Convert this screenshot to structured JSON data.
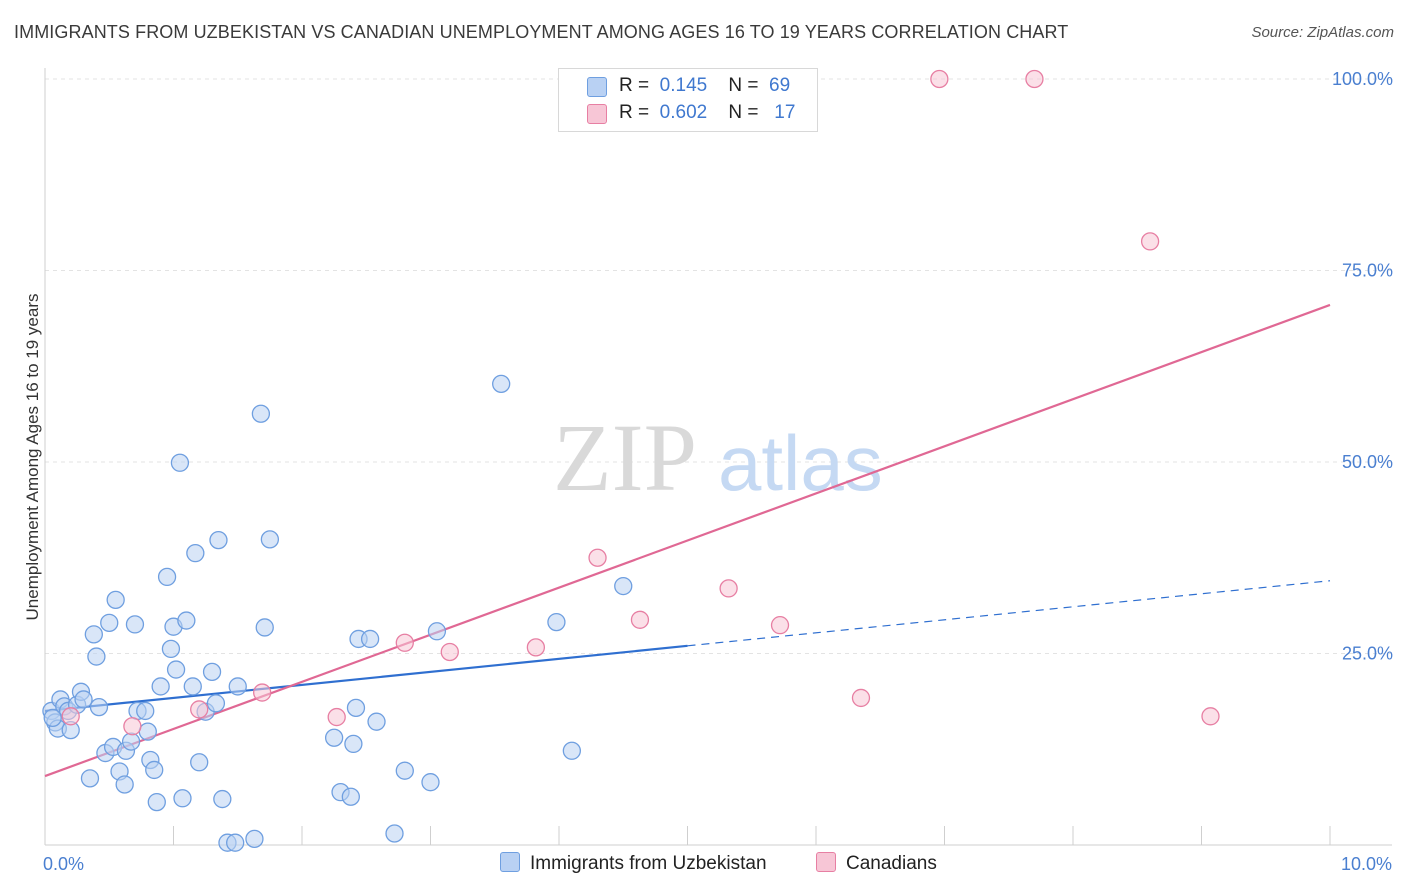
{
  "title": "IMMIGRANTS FROM UZBEKISTAN VS CANADIAN UNEMPLOYMENT AMONG AGES 16 TO 19 YEARS CORRELATION CHART",
  "source": "Source: ZipAtlas.com",
  "watermark": {
    "zip": "ZIP",
    "atlas": "atlas"
  },
  "colors": {
    "blue": "#6f9fe0",
    "blue_fill": "#b9d1f3",
    "blue_line": "#2f6fd0",
    "pink": "#e77fa3",
    "pink_fill": "#f7c6d6",
    "pink_line": "#e06894",
    "tick": "#4a7fd0"
  },
  "legend": {
    "rows": [
      {
        "r_label": "R =",
        "r_value": "0.145",
        "n_label": "N =",
        "n_value": "69"
      },
      {
        "r_label": "R =",
        "r_value": "0.602",
        "n_label": "N =",
        "n_value": "17"
      }
    ]
  },
  "bottom_legend": [
    "Immigrants from Uzbekistan",
    "Canadians"
  ],
  "chart_data": {
    "type": "scatter",
    "ylabel": "Unemployment Among Ages 16 to 19 years",
    "xlim": [
      0,
      10
    ],
    "ylim": [
      0,
      100
    ],
    "x_ticks": [
      {
        "value": 0,
        "label": "0.0%"
      },
      {
        "value": 10,
        "label": "10.0%"
      }
    ],
    "y_ticks": [
      {
        "value": 25,
        "label": "25.0%"
      },
      {
        "value": 50,
        "label": "50.0%"
      },
      {
        "value": 75,
        "label": "75.0%"
      },
      {
        "value": 100,
        "label": "100.0%"
      }
    ],
    "grid": true,
    "legend_position": "top-center",
    "series": [
      {
        "name": "Immigrants from Uzbekistan",
        "color": "#6f9fe0",
        "points": [
          [
            0.05,
            17.5
          ],
          [
            0.08,
            16
          ],
          [
            0.1,
            15.2
          ],
          [
            0.12,
            19
          ],
          [
            0.15,
            18.1
          ],
          [
            0.18,
            17.5
          ],
          [
            0.2,
            15
          ],
          [
            0.25,
            18.3
          ],
          [
            0.28,
            20
          ],
          [
            0.3,
            19
          ],
          [
            0.35,
            8.7
          ],
          [
            0.38,
            27.5
          ],
          [
            0.4,
            24.6
          ],
          [
            0.42,
            18
          ],
          [
            0.47,
            12
          ],
          [
            0.5,
            29
          ],
          [
            0.53,
            12.8
          ],
          [
            0.55,
            32
          ],
          [
            0.58,
            9.6
          ],
          [
            0.62,
            7.9
          ],
          [
            0.63,
            12.3
          ],
          [
            0.67,
            13.5
          ],
          [
            0.7,
            28.8
          ],
          [
            0.72,
            17.5
          ],
          [
            0.78,
            17.5
          ],
          [
            0.8,
            14.8
          ],
          [
            0.82,
            11.1
          ],
          [
            0.85,
            9.8
          ],
          [
            0.87,
            5.6
          ],
          [
            0.9,
            20.7
          ],
          [
            0.95,
            35
          ],
          [
            0.98,
            25.6
          ],
          [
            1.0,
            28.5
          ],
          [
            1.02,
            22.9
          ],
          [
            1.05,
            49.9
          ],
          [
            1.07,
            6.1
          ],
          [
            1.1,
            29.3
          ],
          [
            1.15,
            20.7
          ],
          [
            1.17,
            38.1
          ],
          [
            1.2,
            10.8
          ],
          [
            1.25,
            17.4
          ],
          [
            1.3,
            22.6
          ],
          [
            1.33,
            18.5
          ],
          [
            1.35,
            39.8
          ],
          [
            1.38,
            6.0
          ],
          [
            1.42,
            0.3
          ],
          [
            1.48,
            0.3
          ],
          [
            1.5,
            20.7
          ],
          [
            1.63,
            0.8
          ],
          [
            1.68,
            56.3
          ],
          [
            1.71,
            28.4
          ],
          [
            1.75,
            39.9
          ],
          [
            2.25,
            14
          ],
          [
            2.3,
            6.9
          ],
          [
            2.38,
            6.3
          ],
          [
            2.4,
            13.2
          ],
          [
            2.42,
            17.9
          ],
          [
            2.44,
            26.9
          ],
          [
            2.53,
            26.9
          ],
          [
            2.58,
            16.1
          ],
          [
            2.72,
            1.5
          ],
          [
            2.8,
            9.7
          ],
          [
            3.0,
            8.2
          ],
          [
            3.05,
            27.9
          ],
          [
            3.55,
            60.2
          ],
          [
            3.98,
            29.1
          ],
          [
            4.1,
            12.3
          ],
          [
            4.5,
            33.8
          ],
          [
            0.06,
            16.6
          ]
        ],
        "trend": {
          "solid": [
            [
              0,
              17.5
            ],
            [
              5.0,
              26
            ]
          ],
          "dashed": [
            [
              5.0,
              26
            ],
            [
              10,
              34.5
            ]
          ]
        }
      },
      {
        "name": "Canadians",
        "color": "#e77fa3",
        "points": [
          [
            0.2,
            16.8
          ],
          [
            0.68,
            15.5
          ],
          [
            1.2,
            17.7
          ],
          [
            1.69,
            19.9
          ],
          [
            2.27,
            16.7
          ],
          [
            2.8,
            26.4
          ],
          [
            3.15,
            25.2
          ],
          [
            3.82,
            25.8
          ],
          [
            4.3,
            37.5
          ],
          [
            4.63,
            29.4
          ],
          [
            5.32,
            33.5
          ],
          [
            5.72,
            28.7
          ],
          [
            6.35,
            19.2
          ],
          [
            6.96,
            100
          ],
          [
            7.7,
            100
          ],
          [
            8.6,
            78.8
          ],
          [
            9.07,
            16.8
          ]
        ],
        "trend": {
          "solid": [
            [
              0,
              9
            ],
            [
              10,
              70.5
            ]
          ]
        }
      }
    ]
  }
}
